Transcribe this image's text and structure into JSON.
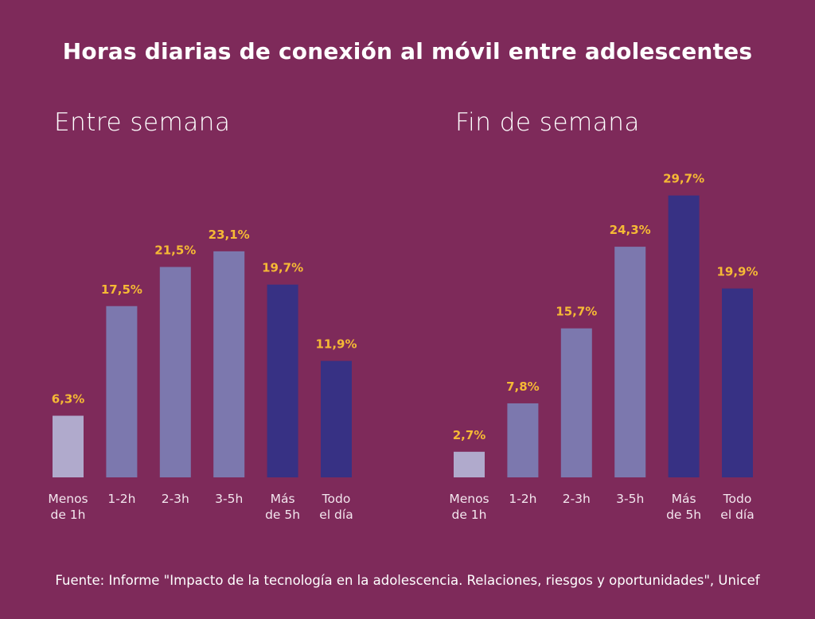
{
  "title": "Horas diarias de conexión al móvil entre adolescentes",
  "source": "Fuente: Informe \"Impacto de la tecnología en la adolescencia. Relaciones, riesgos y oportunidades\", Unicef",
  "colors": {
    "background": "#7e2a5a",
    "label": "#f5b935",
    "light": "#b0aacc",
    "mid": "#7c78ae",
    "dark": "#373184"
  },
  "chart_data": [
    {
      "type": "bar",
      "title": "Entre semana",
      "categories": [
        [
          "Menos",
          "de 1h"
        ],
        [
          "1-2h"
        ],
        [
          "2-3h"
        ],
        [
          "3-5h"
        ],
        [
          "Más",
          "de 5h"
        ],
        [
          "Todo",
          "el día"
        ]
      ],
      "values": [
        6.3,
        17.5,
        21.5,
        23.1,
        19.7,
        11.9
      ],
      "labels": [
        "6,3%",
        "17,5%",
        "21,5%",
        "23,1%",
        "19,7%",
        "11,9%"
      ],
      "bar_colors": [
        "light",
        "mid",
        "mid",
        "mid",
        "dark",
        "dark"
      ],
      "grid": false
    },
    {
      "type": "bar",
      "title": "Fin de semana",
      "categories": [
        [
          "Menos",
          "de 1h"
        ],
        [
          "1-2h"
        ],
        [
          "2-3h"
        ],
        [
          "3-5h"
        ],
        [
          "Más",
          "de 5h"
        ],
        [
          "Todo",
          "el día"
        ]
      ],
      "values": [
        2.7,
        7.8,
        15.7,
        24.3,
        29.7,
        19.9
      ],
      "labels": [
        "2,7%",
        "7,8%",
        "15,7%",
        "24,3%",
        "29,7%",
        "19,9%"
      ],
      "bar_colors": [
        "light",
        "mid",
        "mid",
        "mid",
        "dark",
        "dark"
      ],
      "grid": false
    }
  ]
}
